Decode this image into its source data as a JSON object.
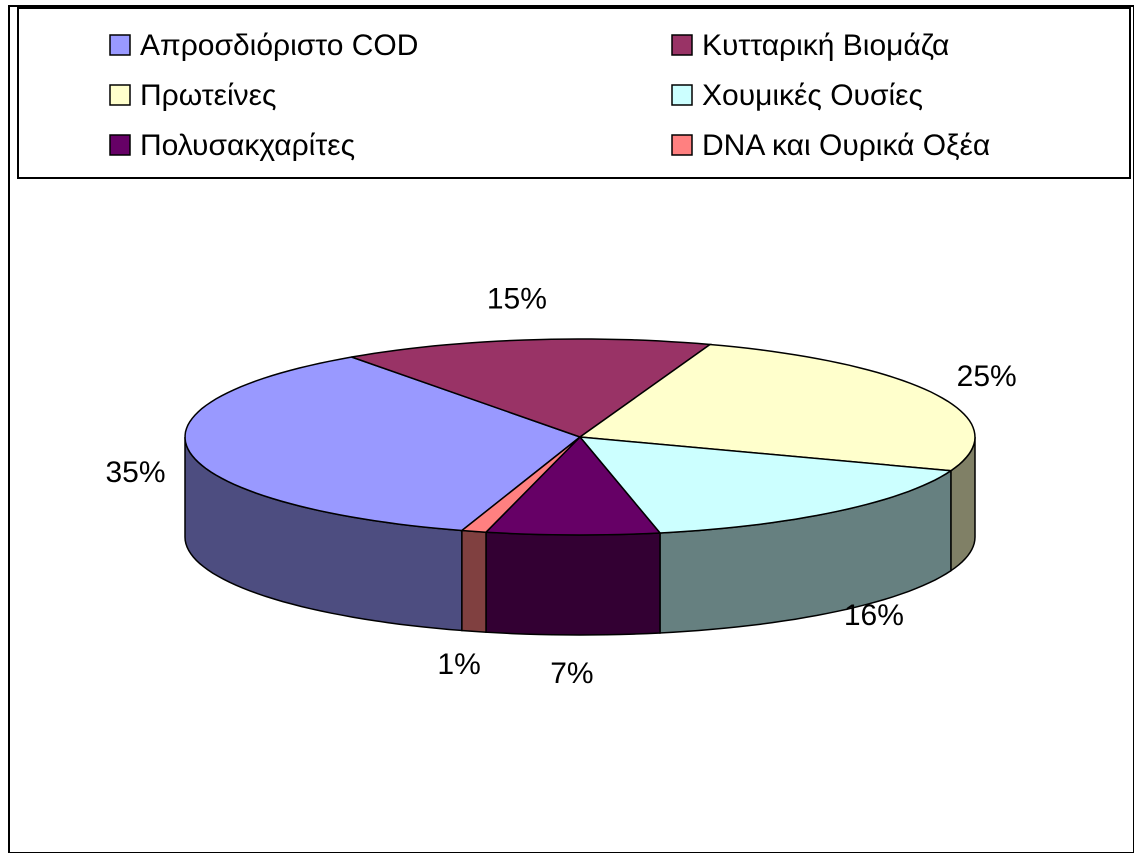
{
  "chart_data": {
    "type": "pie3d",
    "categories": [
      "Απροσδιόριστο COD",
      "Κυτταρική Βιομάζα",
      "Πρωτείνες",
      "Χουμικές Ουσίες",
      "Πολυσακχαρίτες",
      "DNA και Ουρικά Οξέα"
    ],
    "values": [
      35,
      15,
      25,
      16,
      7,
      1
    ],
    "value_labels": [
      "35%",
      "15%",
      "25%",
      "16%",
      "7%",
      "1%"
    ],
    "colors": [
      "#9999ff",
      "#993366",
      "#ffffcc",
      "#ccffff",
      "#660066",
      "#ff8080"
    ],
    "legend": "top"
  }
}
